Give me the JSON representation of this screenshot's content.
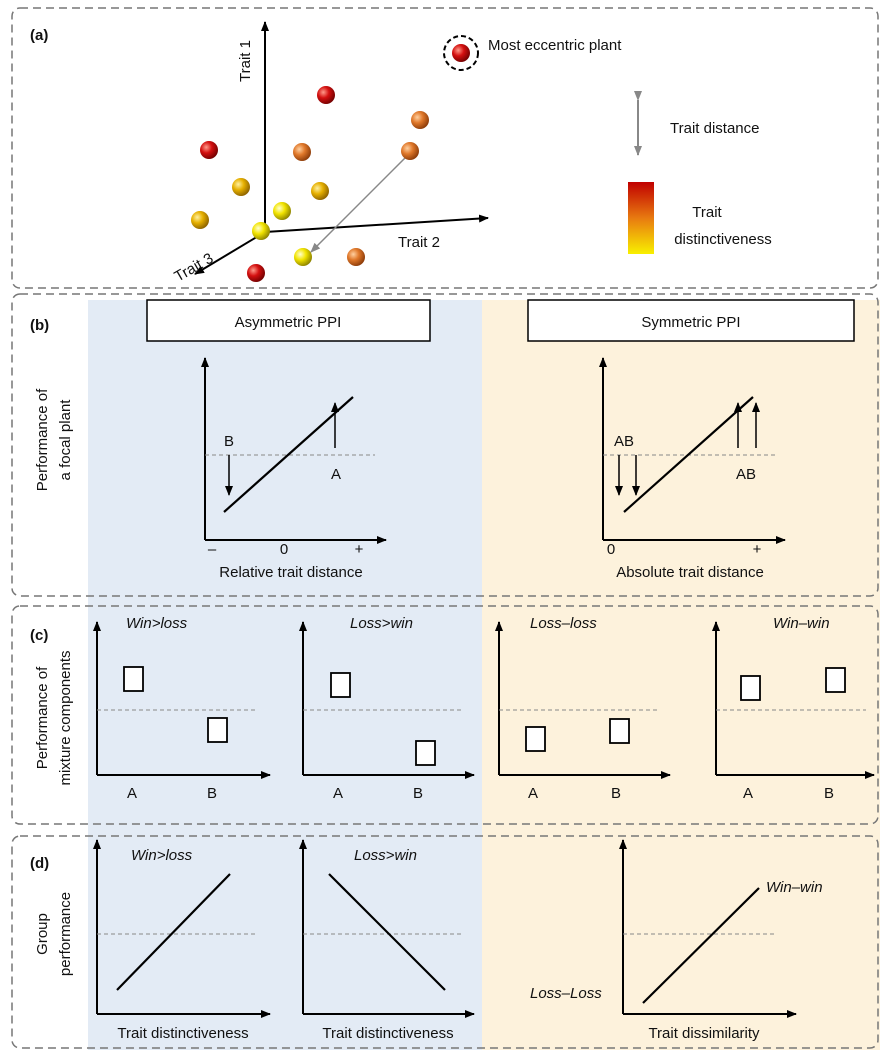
{
  "panel_a": {
    "letter": "(a)",
    "axes": {
      "trait1": "Trait 1",
      "trait2": "Trait 2",
      "trait3": "Trait 3"
    },
    "legend": {
      "eccentric": "Most eccentric plant",
      "distance": "Trait distance",
      "distinctiveness_line1": "Trait",
      "distinctiveness_line2": "distinctiveness"
    },
    "colors": {
      "high": "#cc0000",
      "mid": "#e07a20",
      "low": "#f0e000"
    }
  },
  "panel_b": {
    "letter": "(b)",
    "ylabel_line1": "Performance of",
    "ylabel_line2": "a focal plant",
    "left": {
      "title": "Asymmetric PPI",
      "xlabel": "Relative trait distance",
      "ticks": [
        "–",
        "0",
        "+"
      ],
      "label_b": "B",
      "label_a": "A"
    },
    "right": {
      "title": "Symmetric PPI",
      "xlabel": "Absolute trait distance",
      "ticks": [
        "0",
        "+"
      ],
      "label_left": "AB",
      "label_right": "AB"
    }
  },
  "panel_c": {
    "letter": "(c)",
    "ylabel_line1": "Performance of",
    "ylabel_line2": "mixture components",
    "plots": [
      {
        "title": "Win>loss",
        "x_a": "A",
        "x_b": "B"
      },
      {
        "title": "Loss>win",
        "x_a": "A",
        "x_b": "B"
      },
      {
        "title": "Loss–loss",
        "x_a": "A",
        "x_b": "B"
      },
      {
        "title": "Win–win",
        "x_a": "A",
        "x_b": "B"
      }
    ]
  },
  "panel_d": {
    "letter": "(d)",
    "ylabel_line1": "Group",
    "ylabel_line2": "performance",
    "plots": [
      {
        "title": "Win>loss",
        "xlabel": "Trait distinctiveness"
      },
      {
        "title": "Loss>win",
        "xlabel": "Trait distinctiveness"
      },
      {
        "top_label": "Win–win",
        "bottom_label": "Loss–Loss",
        "xlabel": "Trait dissimilarity"
      }
    ]
  },
  "background_colors": {
    "asymmetric": "#e3ebf5",
    "symmetric": "#fdf2dc"
  }
}
